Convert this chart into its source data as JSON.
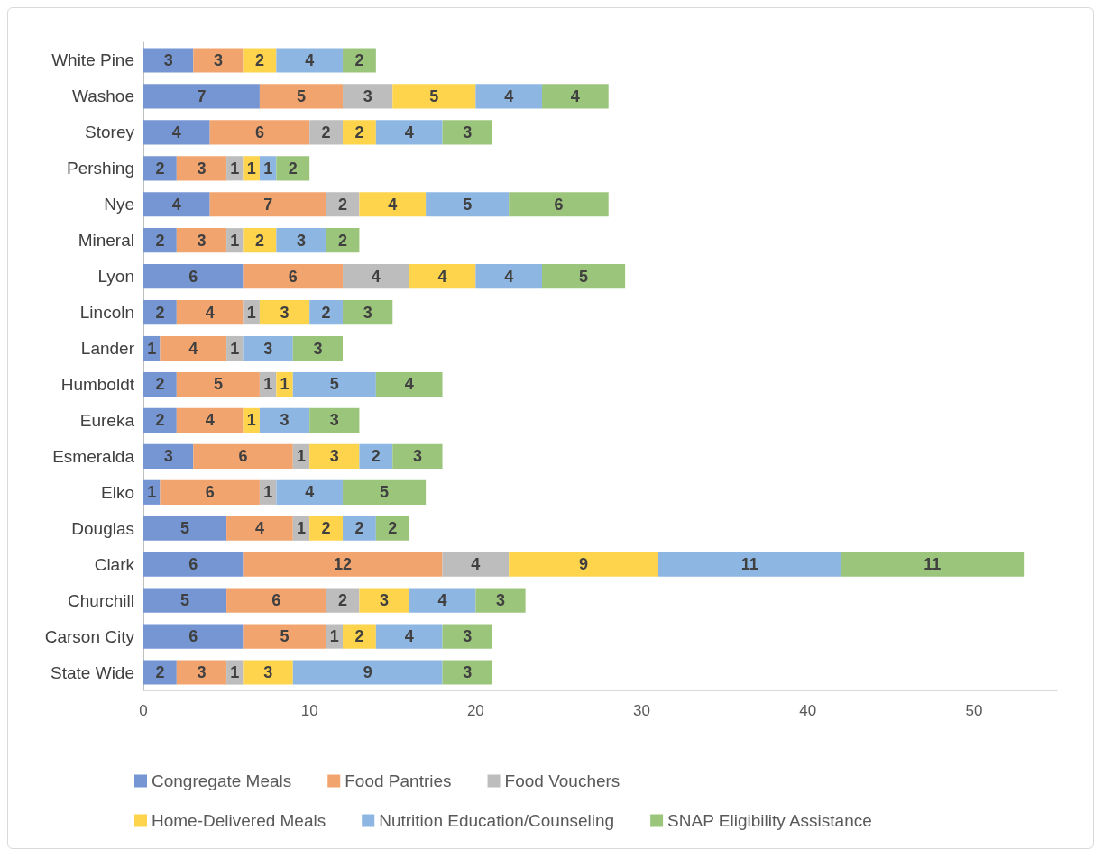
{
  "chart_data": {
    "type": "bar",
    "orientation": "horizontal",
    "stacked": true,
    "data_labels": true,
    "grid": false,
    "legend": "bottom",
    "categories": [
      "White Pine",
      "Washoe",
      "Storey",
      "Pershing",
      "Nye",
      "Mineral",
      "Lyon",
      "Lincoln",
      "Lander",
      "Humboldt",
      "Eureka",
      "Esmeralda",
      "Elko",
      "Douglas",
      "Clark",
      "Churchill",
      "Carson City",
      "State Wide"
    ],
    "xlim": [
      0,
      55
    ],
    "xticks": [
      0,
      10,
      20,
      30,
      40,
      50
    ],
    "series": [
      {
        "name": "Congregate Meals",
        "color": "#7596d3",
        "values": [
          3,
          7,
          4,
          2,
          4,
          2,
          6,
          2,
          1,
          2,
          2,
          3,
          1,
          5,
          6,
          5,
          6,
          2
        ]
      },
      {
        "name": "Food Pantries",
        "color": "#f2a46f",
        "values": [
          3,
          5,
          6,
          3,
          7,
          3,
          6,
          4,
          4,
          5,
          4,
          6,
          6,
          4,
          12,
          6,
          5,
          3
        ]
      },
      {
        "name": "Food Vouchers",
        "color": "#bdbdbd",
        "values": [
          null,
          3,
          2,
          1,
          2,
          1,
          4,
          1,
          1,
          1,
          null,
          1,
          1,
          1,
          4,
          2,
          1,
          1
        ]
      },
      {
        "name": "Home-Delivered Meals",
        "color": "#ffd44d",
        "values": [
          2,
          5,
          2,
          1,
          4,
          2,
          4,
          3,
          null,
          1,
          1,
          3,
          null,
          2,
          9,
          3,
          2,
          3
        ]
      },
      {
        "name": "Nutrition Education/Counseling",
        "color": "#8eb6e2",
        "values": [
          4,
          4,
          4,
          1,
          5,
          3,
          4,
          2,
          3,
          5,
          3,
          2,
          4,
          2,
          11,
          4,
          4,
          9
        ]
      },
      {
        "name": "SNAP Eligibility Assistance",
        "color": "#9cc57c",
        "values": [
          2,
          4,
          3,
          2,
          6,
          2,
          5,
          3,
          3,
          4,
          3,
          3,
          5,
          2,
          11,
          3,
          3,
          3
        ]
      }
    ]
  }
}
